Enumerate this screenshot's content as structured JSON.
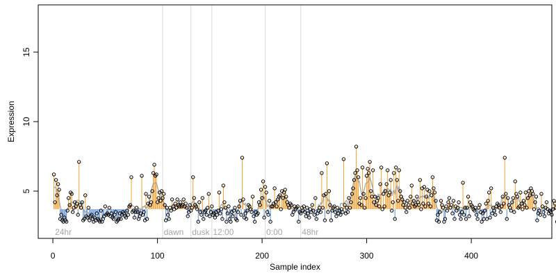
{
  "chart_data": {
    "type": "line",
    "title": "",
    "xlabel": "Sample index",
    "ylabel": "Expression",
    "xlim": [
      -14,
      477
    ],
    "ylim": [
      1.6,
      18.4
    ],
    "x_ticks": [
      0,
      100,
      200,
      300,
      400
    ],
    "x_tick_labels": [
      "0",
      "100",
      "200",
      "300",
      "400"
    ],
    "y_ticks": [
      5,
      10,
      15
    ],
    "y_tick_labels": [
      "5",
      "10",
      "15"
    ],
    "grid": false,
    "legend": "none",
    "baseline": 3.7,
    "colors": {
      "above": "#f0a030",
      "below": "#5b8fd6",
      "smooth": "#a0a0a0",
      "point": "#000000",
      "separator": "#d9d9d9",
      "segment_label": "#a6a6a6"
    },
    "segments": [
      {
        "label": "24hr",
        "x": 2
      },
      {
        "label": "dawn",
        "x": 106
      },
      {
        "label": "dusk",
        "x": 133
      },
      {
        "label": "12:00",
        "x": 153
      },
      {
        "label": "0:00",
        "x": 204
      },
      {
        "label": "48hr",
        "x": 238
      }
    ],
    "separators": [
      105,
      132,
      152,
      203,
      237
    ],
    "series": [
      {
        "values": [
          6.2,
          4.2,
          5.8,
          4.7,
          5.5,
          5.1,
          3.0,
          3.3,
          2.9,
          2.8,
          3.1,
          2.9,
          2.8,
          3.6,
          4.5,
          4.0,
          4.9,
          4.8,
          3.5,
          3.8,
          4.2,
          3.9,
          4.1,
          3.3,
          7.1,
          4.0,
          3.8,
          4.2,
          2.9,
          3.0,
          4.7,
          3.2,
          3.1,
          3.8,
          2.9,
          3.2,
          3.3,
          3.0,
          2.8,
          3.1,
          2.9,
          3.4,
          3.0,
          2.9,
          2.8,
          3.6,
          2.8,
          3.0,
          3.2,
          3.9,
          3.3,
          3.4,
          3.3,
          3.8,
          3.2,
          3.4,
          3.1,
          3.0,
          3.3,
          3.5,
          2.8,
          2.9,
          3.0,
          3.4,
          3.0,
          3.3,
          3.5,
          3.4,
          3.2,
          3.1,
          3.6,
          3.3,
          3.9,
          4.0,
          6.0,
          3.5,
          3.6,
          3.1,
          3.5,
          3.8,
          3.5,
          3.0,
          3.2,
          3.4,
          6.1,
          3.3,
          3.5,
          2.9,
          4.8,
          3.0,
          4.1,
          4.6,
          4.0,
          4.2,
          5.0,
          6.3,
          6.9,
          6.1,
          6.2,
          4.2,
          4.5,
          4.9,
          4.3,
          5.0,
          4.5,
          4.8,
          4.0,
          2.9,
          3.8,
          3.3,
          3.0,
          3.8,
          3.6,
          4.4,
          3.9,
          3.7,
          4.1,
          3.8,
          4.4,
          4.0,
          3.9,
          4.2,
          3.9,
          4.0,
          4.4,
          3.9,
          4.1,
          3.8,
          3.2,
          3.5,
          4.0,
          3.6,
          3.8,
          6.0,
          4.5,
          4.0,
          3.9,
          3.7,
          2.8,
          4.2,
          3.5,
          3.3,
          4.5,
          3.0,
          3.5,
          3.6,
          3.3,
          3.8,
          4.8,
          3.2,
          3.5,
          3.9,
          3.3,
          3.4,
          3.1,
          3.5,
          3.3,
          3.6,
          4.9,
          3.4,
          3.7,
          3.0,
          5.4,
          4.2,
          3.8,
          2.8,
          3.4,
          3.9,
          3.0,
          2.8,
          3.5,
          3.2,
          3.6,
          3.8,
          3.0,
          2.9,
          3.5,
          3.9,
          4.3,
          3.3,
          7.4,
          4.4,
          3.1,
          3.4,
          3.0,
          3.6,
          4.0,
          3.9,
          3.7,
          3.5,
          4.6,
          3.2,
          2.8,
          3.5,
          3.3,
          3.4,
          4.2,
          4.0,
          5.1,
          4.5,
          5.7,
          3.1,
          5.3,
          4.9,
          3.5,
          3.3,
          4.3,
          2.8,
          3.9,
          3.9,
          4.1,
          5.2,
          4.2,
          3.9,
          4.4,
          4.6,
          4.7,
          3.7,
          5.0,
          4.5,
          4.9,
          5.1,
          4.6,
          4.2,
          4.0,
          3.8,
          4.1,
          4.0,
          3.3,
          3.5,
          3.9,
          3.7,
          3.8,
          3.9,
          2.8,
          3.5,
          3.4,
          3.8,
          3.6,
          3.9,
          3.5,
          3.2,
          3.8,
          3.4,
          3.1,
          3.7,
          3.5,
          4.0,
          3.6,
          3.3,
          4.5,
          3.0,
          3.4,
          3.6,
          3.8,
          3.5,
          6.3,
          3.8,
          4.7,
          2.9,
          4.8,
          7.0,
          3.5,
          5.0,
          4.0,
          2.9,
          3.6,
          3.8,
          3.9,
          3.5,
          3.2,
          3.8,
          3.4,
          3.6,
          3.3,
          3.7,
          3.5,
          7.3,
          4.0,
          3.4,
          3.8,
          3.5,
          4.5,
          3.8,
          4.2,
          4.8,
          5.2,
          5.8,
          6.3,
          8.2,
          6.5,
          6.0,
          4.1,
          4.5,
          4.0,
          6.7,
          4.8,
          3.8,
          4.5,
          6.1,
          6.6,
          6.3,
          7.1,
          5.0,
          4.6,
          6.5,
          4.2,
          4.6,
          4.0,
          4.3,
          4.5,
          3.9,
          5.5,
          6.7,
          3.7,
          4.8,
          3.9,
          5.0,
          5.5,
          6.5,
          4.7,
          4.9,
          5.8,
          3.6,
          4.2,
          6.3,
          3.0,
          6.7,
          5.8,
          4.3,
          6.5,
          5.0,
          4.6,
          4.4,
          4.0,
          4.2,
          3.8,
          3.5,
          4.3,
          4.0,
          3.8,
          4.6,
          5.4,
          4.1,
          4.3,
          3.9,
          4.0,
          4.6,
          4.2,
          4.0,
          5.8,
          3.7,
          5.2,
          4.1,
          5.3,
          3.9,
          4.6,
          5.1,
          4.1,
          5.0,
          3.9,
          4.7,
          6.0,
          5.2,
          4.9,
          4.3,
          2.9,
          3.3,
          2.8,
          3.5,
          4.3,
          4.0,
          3.8,
          2.8,
          3.0,
          3.9,
          3.6,
          4.2,
          4.5,
          3.8,
          4.0,
          3.4,
          4.3,
          3.0,
          3.9,
          3.6,
          3.8,
          4.2,
          3.3,
          3.0,
          3.5,
          5.6,
          3.3,
          3.8,
          3.0,
          3.8,
          4.6,
          3.2,
          4.2,
          4.0,
          3.9,
          3.7,
          3.6,
          3.8,
          3.3,
          3.0,
          3.8,
          4.0,
          3.5,
          2.8,
          3.4,
          3.0,
          3.6,
          4.1,
          3.0,
          4.3,
          4.9,
          3.1,
          5.2,
          3.4,
          3.8,
          3.6,
          3.3,
          3.9,
          4.1,
          4.0,
          3.8,
          3.5,
          3.9,
          4.6,
          4.1,
          7.4,
          4.8,
          3.0,
          4.5,
          4.0,
          3.8,
          3.6,
          4.2,
          4.5,
          3.5,
          5.7,
          4.8,
          4.6,
          3.8,
          3.9,
          4.9,
          4.1,
          3.7,
          4.3,
          4.0,
          4.9,
          3.8,
          4.5,
          5.0,
          4.7,
          5.2,
          5.0,
          4.8,
          3.7,
          4.2,
          4.6,
          2.9,
          3.4,
          3.6,
          3.3,
          4.8,
          3.9,
          3.5,
          3.2,
          3.8,
          4.2,
          3.7,
          3.4,
          3.6,
          3.5,
          3.3,
          3.7,
          4.3,
          4.1,
          3.8,
          2.8
        ]
      }
    ]
  }
}
